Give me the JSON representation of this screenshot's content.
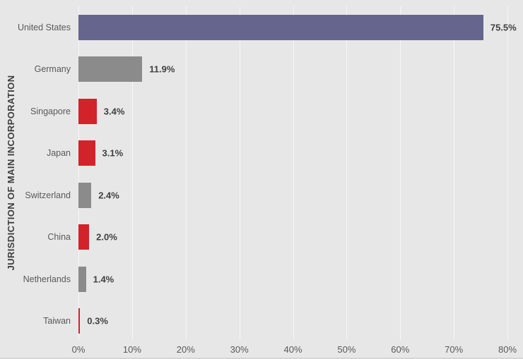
{
  "chart_data": {
    "type": "bar",
    "orientation": "horizontal",
    "title": "",
    "xlabel": "",
    "ylabel": "JURISDICTION OF MAIN INCORPORATION",
    "xlim": [
      0,
      80
    ],
    "x_ticks": [
      "0%",
      "10%",
      "20%",
      "30%",
      "40%",
      "50%",
      "60%",
      "70%",
      "80%"
    ],
    "grid": true,
    "legend": false,
    "categories": [
      "United States",
      "Germany",
      "Singapore",
      "Japan",
      "Switzerland",
      "China",
      "Netherlands",
      "Taiwan"
    ],
    "values": [
      75.5,
      11.9,
      3.4,
      3.1,
      2.4,
      2.0,
      1.4,
      0.3
    ],
    "value_labels": [
      "75.5%",
      "11.9%",
      "3.4%",
      "3.1%",
      "2.4%",
      "2.0%",
      "1.4%",
      "0.3%"
    ],
    "bar_colors": [
      "#66658e",
      "#8b8b8b",
      "#d2232b",
      "#d2232b",
      "#8b8b8b",
      "#d2232b",
      "#8b8b8b",
      "#d2232b"
    ]
  },
  "colors": {
    "background": "#e8e7e7",
    "gridline": "#f7f6f6",
    "category_label": "#595959",
    "tick_label": "#595959",
    "value_label": "#404040",
    "axis_title": "#3d3d3d",
    "accent_purple": "#66658e",
    "accent_gray": "#8b8b8b",
    "accent_red": "#d2232b"
  }
}
